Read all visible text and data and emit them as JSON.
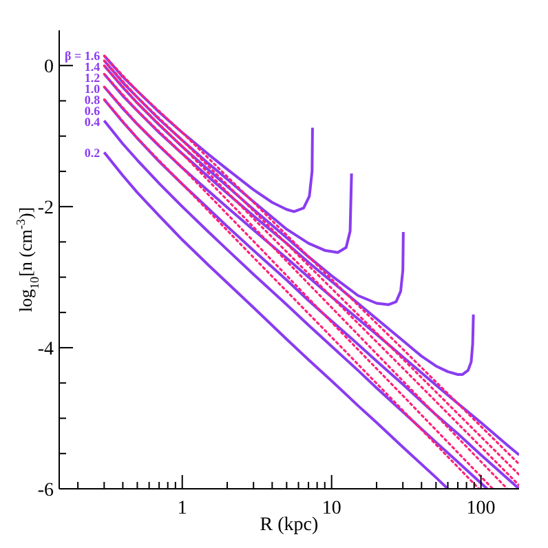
{
  "chart_data": {
    "type": "line",
    "xlabel": "R (kpc)",
    "ylabel": "log$_{10}$[n (cm$^{-3}$)]",
    "log": "x",
    "xlim": [
      0.15,
      180
    ],
    "ylim": [
      -6,
      0.5
    ],
    "xticks": [
      {
        "value": 0.2,
        "label": null
      },
      {
        "value": 0.3,
        "label": null
      },
      {
        "value": 0.4,
        "label": null
      },
      {
        "value": 0.5,
        "label": null
      },
      {
        "value": 0.6,
        "label": null
      },
      {
        "value": 0.7,
        "label": null
      },
      {
        "value": 0.8,
        "label": null
      },
      {
        "value": 0.9,
        "label": null
      },
      1,
      {
        "value": 2,
        "label": null
      },
      {
        "value": 3,
        "label": null
      },
      {
        "value": 4,
        "label": null
      },
      {
        "value": 5,
        "label": null
      },
      {
        "value": 6,
        "label": null
      },
      {
        "value": 7,
        "label": null
      },
      {
        "value": 8,
        "label": null
      },
      {
        "value": 9,
        "label": null
      },
      10,
      {
        "value": 20,
        "label": null
      },
      {
        "value": 30,
        "label": null
      },
      {
        "value": 40,
        "label": null
      },
      {
        "value": 50,
        "label": null
      },
      {
        "value": 60,
        "label": null
      },
      {
        "value": 70,
        "label": null
      },
      {
        "value": 80,
        "label": null
      },
      {
        "value": 90,
        "label": null
      },
      100
    ],
    "yticks": [
      -6,
      {
        "value": -5.5,
        "label": null
      },
      {
        "value": -5,
        "label": null
      },
      {
        "value": -4.5,
        "label": null
      },
      -4,
      {
        "value": -3.5,
        "label": null
      },
      {
        "value": -3,
        "label": null
      },
      {
        "value": -2.5,
        "label": null
      },
      -2,
      {
        "value": -1.5,
        "label": null
      },
      {
        "value": -1,
        "label": null
      },
      {
        "value": -0.5,
        "label": null
      },
      0
    ],
    "series": [
      {
        "name": "β = 1.6",
        "color": "#8a3cf0",
        "x": [
          0.3,
          0.4,
          0.5,
          0.7,
          1,
          1.5,
          2,
          3,
          4,
          5,
          5.6,
          6.5,
          7.1,
          7.4,
          7.45
        ],
        "values": [
          0.14,
          -0.16,
          -0.36,
          -0.66,
          -0.95,
          -1.26,
          -1.47,
          -1.76,
          -1.94,
          -2.04,
          -2.07,
          -2.02,
          -1.85,
          -1.5,
          -0.88
        ]
      },
      {
        "name": "1.4",
        "color": "#8a3cf0",
        "x": [
          0.3,
          0.4,
          0.5,
          0.7,
          1,
          1.5,
          2,
          3,
          5,
          7,
          9,
          11,
          12.5,
          13.3,
          13.6
        ],
        "values": [
          0.07,
          -0.24,
          -0.45,
          -0.76,
          -1.06,
          -1.39,
          -1.61,
          -1.93,
          -2.32,
          -2.52,
          -2.62,
          -2.65,
          -2.58,
          -2.35,
          -1.53
        ]
      },
      {
        "name": "1.2",
        "color": "#8a3cf0",
        "x": [
          0.3,
          0.4,
          0.5,
          0.7,
          1,
          1.5,
          2,
          3,
          5,
          7,
          10,
          15,
          20,
          24,
          27,
          29,
          30,
          30.2
        ],
        "values": [
          0,
          -0.31,
          -0.53,
          -0.84,
          -1.15,
          -1.48,
          -1.71,
          -2.04,
          -2.44,
          -2.71,
          -2.98,
          -3.26,
          -3.37,
          -3.39,
          -3.35,
          -3.2,
          -2.9,
          -2.36
        ]
      },
      {
        "name": "1.0",
        "color": "#8a3cf0",
        "x": [
          0.3,
          0.4,
          0.5,
          0.7,
          1,
          1.5,
          2,
          3,
          5,
          7,
          10,
          15,
          20,
          30,
          40,
          50,
          60,
          70,
          75,
          82,
          86,
          88,
          89
        ],
        "values": [
          -0.12,
          -0.43,
          -0.64,
          -0.95,
          -1.25,
          -1.58,
          -1.81,
          -2.13,
          -2.52,
          -2.79,
          -3.06,
          -3.37,
          -3.59,
          -3.9,
          -4.12,
          -4.26,
          -4.34,
          -4.38,
          -4.38,
          -4.32,
          -4.2,
          -3.95,
          -3.53
        ]
      },
      {
        "name": "0.8",
        "color": "#8a3cf0",
        "x": [
          0.3,
          0.4,
          0.5,
          0.7,
          1,
          1.5,
          2,
          3,
          5,
          7,
          10,
          15,
          20,
          30,
          50,
          70,
          100,
          150,
          180
        ],
        "values": [
          -0.3,
          -0.61,
          -0.83,
          -1.14,
          -1.45,
          -1.78,
          -2.01,
          -2.33,
          -2.73,
          -3,
          -3.28,
          -3.59,
          -3.81,
          -4.13,
          -4.53,
          -4.79,
          -5.06,
          -5.38,
          -5.52
        ]
      },
      {
        "name": "0.6",
        "color": "#8a3cf0",
        "x": [
          0.3,
          0.4,
          0.5,
          0.7,
          1,
          1.5,
          2,
          3,
          5,
          7,
          10,
          15,
          20,
          30,
          50,
          70,
          100,
          150,
          180
        ],
        "values": [
          -0.48,
          -0.8,
          -1.03,
          -1.36,
          -1.68,
          -2.03,
          -2.28,
          -2.62,
          -3.04,
          -3.33,
          -3.62,
          -3.95,
          -4.19,
          -4.52,
          -4.95,
          -5.22,
          -5.52,
          -5.85,
          -6
        ]
      },
      {
        "name": "0.4",
        "color": "#8a3cf0",
        "x": [
          0.3,
          0.4,
          0.5,
          0.7,
          1,
          1.5,
          2,
          3,
          5,
          7,
          10,
          15,
          20,
          30,
          50,
          70,
          100,
          110
        ],
        "values": [
          -0.78,
          -1.11,
          -1.34,
          -1.67,
          -2,
          -2.36,
          -2.61,
          -2.96,
          -3.39,
          -3.68,
          -3.98,
          -4.32,
          -4.57,
          -4.91,
          -5.34,
          -5.62,
          -5.92,
          -6
        ]
      },
      {
        "name": "0.2",
        "color": "#8a3cf0",
        "x": [
          0.3,
          0.4,
          0.5,
          0.7,
          1,
          1.5,
          2,
          3,
          5,
          7,
          10,
          15,
          20,
          30,
          50,
          60
        ],
        "values": [
          -1.23,
          -1.56,
          -1.8,
          -2.13,
          -2.47,
          -2.83,
          -3.08,
          -3.43,
          -3.88,
          -4.17,
          -4.47,
          -4.82,
          -5.06,
          -5.41,
          -5.84,
          -6
        ]
      },
      {
        "color": "#ff2277",
        "line_style": "dotted",
        "x": [
          0.3,
          0.5,
          1,
          3,
          10,
          30,
          180
        ],
        "values": [
          0.14,
          -0.36,
          -0.95,
          -1.94,
          -3.03,
          -4.02,
          -5.65
        ]
      },
      {
        "color": "#ff2277",
        "line_style": "dotted",
        "x": [
          0.3,
          0.5,
          1,
          3,
          10,
          30,
          180
        ],
        "values": [
          0.07,
          -0.45,
          -1.06,
          -2.06,
          -3.16,
          -4.16,
          -5.8
        ]
      },
      {
        "color": "#ff2277",
        "line_style": "dotted",
        "x": [
          0.3,
          0.5,
          1,
          3,
          10,
          30,
          180
        ],
        "values": [
          0,
          -0.53,
          -1.15,
          -2.17,
          -3.28,
          -4.29,
          -5.95
        ]
      },
      {
        "color": "#ff2277",
        "line_style": "dotted",
        "x": [
          0.3,
          0.5,
          1,
          3,
          10,
          30,
          150
        ],
        "values": [
          -0.12,
          -0.64,
          -1.25,
          -2.29,
          -3.43,
          -4.47,
          -6
        ]
      },
      {
        "color": "#ff2277",
        "line_style": "dotted",
        "x": [
          0.3,
          0.5,
          1,
          3,
          10,
          30,
          120
        ],
        "values": [
          -0.3,
          -0.83,
          -1.45,
          -2.49,
          -3.64,
          -4.68,
          -6
        ]
      },
      {
        "color": "#ff2277",
        "line_style": "dotted",
        "x": [
          0.3,
          0.5,
          1,
          3,
          10,
          30,
          97
        ],
        "values": [
          -0.48,
          -1.03,
          -1.68,
          -2.72,
          -3.85,
          -4.89,
          -6
        ]
      }
    ]
  }
}
